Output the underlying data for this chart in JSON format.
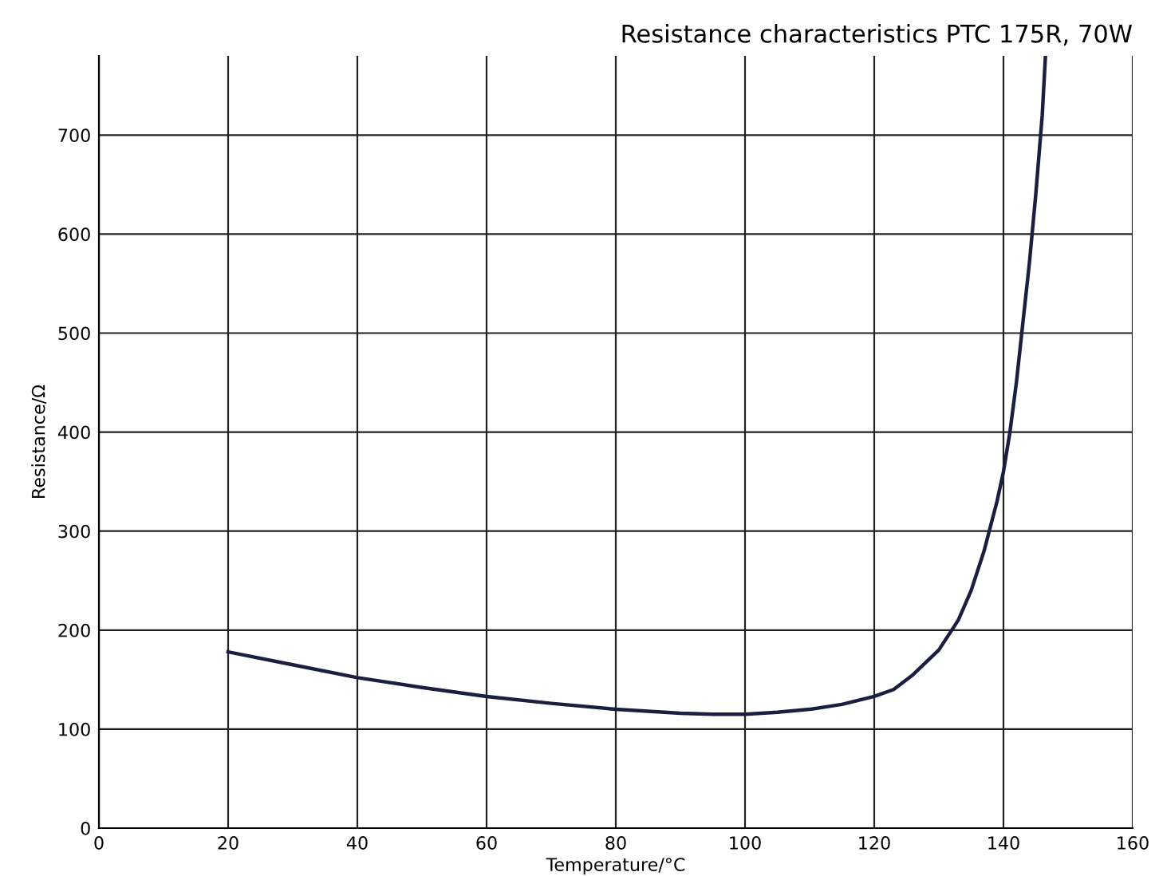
{
  "chart_data": {
    "type": "line",
    "title": "Resistance characteristics PTC 175R, 70W",
    "xlabel": "Temperature/°C",
    "ylabel": "Resistance/Ω",
    "series": [
      {
        "color": "#1a1f3f",
        "x": [
          20,
          30,
          40,
          50,
          60,
          70,
          80,
          90,
          95,
          100,
          105,
          110,
          115,
          120,
          123,
          126,
          130,
          133,
          135,
          137,
          138,
          139,
          140,
          141,
          142,
          143,
          144,
          145,
          146,
          146.5
        ],
        "values": [
          178,
          165,
          152,
          142,
          133,
          126,
          120,
          116,
          115,
          115,
          117,
          120,
          125,
          133,
          140,
          155,
          180,
          210,
          240,
          280,
          305,
          330,
          360,
          400,
          450,
          510,
          570,
          640,
          720,
          780
        ]
      }
    ],
    "xlim": [
      0,
      160
    ],
    "xticks": [
      0,
      20,
      40,
      60,
      80,
      100,
      120,
      140,
      160
    ],
    "ylim": [
      0,
      780
    ],
    "yticks": [
      0,
      100,
      200,
      300,
      400,
      500,
      600,
      700
    ],
    "grid": true,
    "legend": false,
    "marker": "none",
    "line_style": "solid"
  }
}
